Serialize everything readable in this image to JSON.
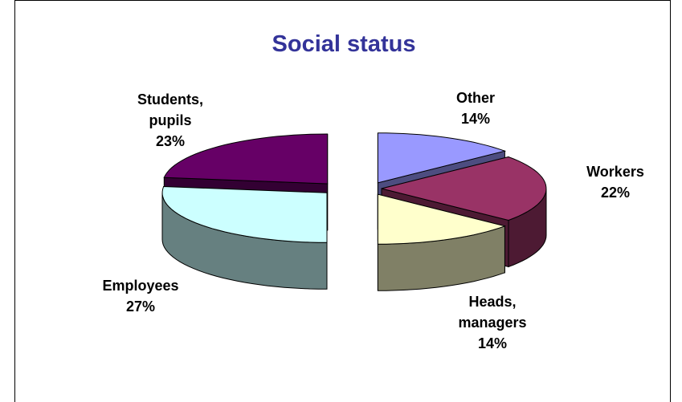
{
  "chart_data": {
    "type": "pie3d",
    "title": "Social status",
    "title_color": "#333399",
    "categories": [
      "Other",
      "Workers",
      "Heads, managers",
      "Employees",
      "Students, pupils"
    ],
    "values": [
      14,
      22,
      14,
      27,
      23
    ],
    "value_labels": [
      "14%",
      "22%",
      "14%",
      "27%",
      "23%"
    ],
    "colors": [
      "#9999ff",
      "#993366",
      "#ffffcc",
      "#ccffff",
      "#660066"
    ],
    "label_colors": [
      "#000000",
      "#000000",
      "#000000",
      "#ff0000",
      "#000000"
    ]
  }
}
